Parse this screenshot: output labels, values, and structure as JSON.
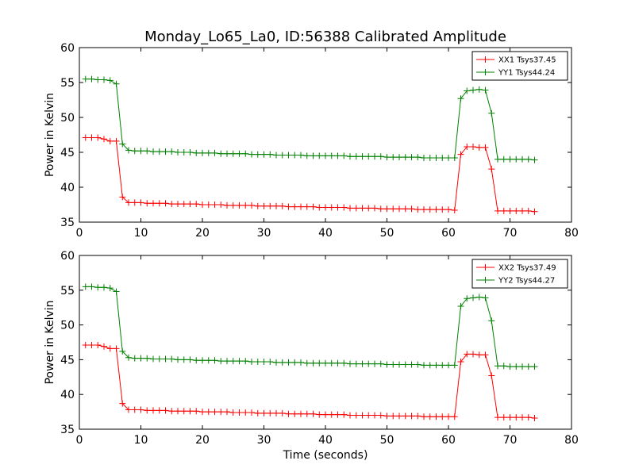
{
  "title": "Monday_Lo65_La0, ID:56388 Calibrated Amplitude",
  "colors": {
    "xx": "#ff0000",
    "yy": "#008000"
  },
  "chart_data": [
    {
      "type": "line",
      "xlabel": "",
      "ylabel": "Power in Kelvin",
      "xlim": [
        0,
        80
      ],
      "ylim": [
        35,
        60
      ],
      "xticks": [
        0,
        10,
        20,
        30,
        40,
        50,
        60,
        70,
        80
      ],
      "yticks": [
        35,
        40,
        45,
        50,
        55,
        60
      ],
      "grid": false,
      "legend": "top-right",
      "series": [
        {
          "name": "XX1 Tsys37.45",
          "color": "#ff0000",
          "x": [
            1,
            2,
            3,
            4,
            5,
            6,
            7,
            8,
            9,
            10,
            11,
            12,
            13,
            14,
            15,
            16,
            17,
            18,
            19,
            20,
            21,
            22,
            23,
            24,
            25,
            26,
            27,
            28,
            29,
            30,
            31,
            32,
            33,
            34,
            35,
            36,
            37,
            38,
            39,
            40,
            41,
            42,
            43,
            44,
            45,
            46,
            47,
            48,
            49,
            50,
            51,
            52,
            53,
            54,
            55,
            56,
            57,
            58,
            59,
            60,
            61,
            62,
            63,
            64,
            65,
            66,
            67,
            68,
            69,
            70,
            71,
            72,
            73,
            74
          ],
          "y": [
            47.1,
            47.1,
            47.1,
            46.9,
            46.6,
            46.6,
            38.6,
            37.8,
            37.8,
            37.8,
            37.7,
            37.7,
            37.7,
            37.7,
            37.6,
            37.6,
            37.6,
            37.6,
            37.6,
            37.5,
            37.5,
            37.5,
            37.5,
            37.4,
            37.4,
            37.4,
            37.4,
            37.4,
            37.3,
            37.3,
            37.3,
            37.3,
            37.3,
            37.2,
            37.2,
            37.2,
            37.2,
            37.2,
            37.1,
            37.1,
            37.1,
            37.1,
            37.1,
            37.0,
            37.0,
            37.0,
            37.0,
            37.0,
            36.9,
            36.9,
            36.9,
            36.9,
            36.9,
            36.9,
            36.8,
            36.8,
            36.8,
            36.8,
            36.8,
            36.8,
            36.7,
            44.7,
            45.8,
            45.8,
            45.7,
            45.7,
            42.6,
            36.6,
            36.6,
            36.6,
            36.6,
            36.6,
            36.6,
            36.5
          ]
        },
        {
          "name": "YY1 Tsys44.24",
          "color": "#008000",
          "x": [
            1,
            2,
            3,
            4,
            5,
            6,
            7,
            8,
            9,
            10,
            11,
            12,
            13,
            14,
            15,
            16,
            17,
            18,
            19,
            20,
            21,
            22,
            23,
            24,
            25,
            26,
            27,
            28,
            29,
            30,
            31,
            32,
            33,
            34,
            35,
            36,
            37,
            38,
            39,
            40,
            41,
            42,
            43,
            44,
            45,
            46,
            47,
            48,
            49,
            50,
            51,
            52,
            53,
            54,
            55,
            56,
            57,
            58,
            59,
            60,
            61,
            62,
            63,
            64,
            65,
            66,
            67,
            68,
            69,
            70,
            71,
            72,
            73,
            74
          ],
          "y": [
            55.5,
            55.5,
            55.4,
            55.4,
            55.3,
            54.8,
            46.2,
            45.3,
            45.2,
            45.2,
            45.2,
            45.1,
            45.1,
            45.1,
            45.1,
            45.0,
            45.0,
            45.0,
            44.9,
            44.9,
            44.9,
            44.9,
            44.8,
            44.8,
            44.8,
            44.8,
            44.8,
            44.7,
            44.7,
            44.7,
            44.7,
            44.6,
            44.6,
            44.6,
            44.6,
            44.6,
            44.5,
            44.5,
            44.5,
            44.5,
            44.5,
            44.5,
            44.5,
            44.4,
            44.4,
            44.4,
            44.4,
            44.4,
            44.4,
            44.3,
            44.3,
            44.3,
            44.3,
            44.3,
            44.3,
            44.2,
            44.2,
            44.2,
            44.2,
            44.2,
            44.2,
            52.7,
            53.8,
            53.9,
            54.0,
            53.9,
            50.6,
            44.0,
            44.0,
            44.0,
            44.0,
            44.0,
            44.0,
            43.9
          ]
        }
      ]
    },
    {
      "type": "line",
      "xlabel": "Time (seconds)",
      "ylabel": "Power in Kelvin",
      "xlim": [
        0,
        80
      ],
      "ylim": [
        35,
        60
      ],
      "xticks": [
        0,
        10,
        20,
        30,
        40,
        50,
        60,
        70,
        80
      ],
      "yticks": [
        35,
        40,
        45,
        50,
        55,
        60
      ],
      "grid": false,
      "legend": "top-right",
      "series": [
        {
          "name": "XX2 Tsys37.49",
          "color": "#ff0000",
          "x": [
            1,
            2,
            3,
            4,
            5,
            6,
            7,
            8,
            9,
            10,
            11,
            12,
            13,
            14,
            15,
            16,
            17,
            18,
            19,
            20,
            21,
            22,
            23,
            24,
            25,
            26,
            27,
            28,
            29,
            30,
            31,
            32,
            33,
            34,
            35,
            36,
            37,
            38,
            39,
            40,
            41,
            42,
            43,
            44,
            45,
            46,
            47,
            48,
            49,
            50,
            51,
            52,
            53,
            54,
            55,
            56,
            57,
            58,
            59,
            60,
            61,
            62,
            63,
            64,
            65,
            66,
            67,
            68,
            69,
            70,
            71,
            72,
            73,
            74
          ],
          "y": [
            47.1,
            47.1,
            47.1,
            46.9,
            46.6,
            46.6,
            38.7,
            37.8,
            37.8,
            37.8,
            37.7,
            37.7,
            37.7,
            37.7,
            37.6,
            37.6,
            37.6,
            37.6,
            37.6,
            37.5,
            37.5,
            37.5,
            37.5,
            37.5,
            37.4,
            37.4,
            37.4,
            37.4,
            37.3,
            37.3,
            37.3,
            37.3,
            37.3,
            37.2,
            37.2,
            37.2,
            37.2,
            37.2,
            37.1,
            37.1,
            37.1,
            37.1,
            37.1,
            37.0,
            37.0,
            37.0,
            37.0,
            37.0,
            37.0,
            36.9,
            36.9,
            36.9,
            36.9,
            36.9,
            36.9,
            36.8,
            36.8,
            36.8,
            36.8,
            36.8,
            36.8,
            44.7,
            45.8,
            45.8,
            45.7,
            45.7,
            42.7,
            36.7,
            36.7,
            36.7,
            36.7,
            36.7,
            36.7,
            36.6
          ]
        },
        {
          "name": "YY2 Tsys44.27",
          "color": "#008000",
          "x": [
            1,
            2,
            3,
            4,
            5,
            6,
            7,
            8,
            9,
            10,
            11,
            12,
            13,
            14,
            15,
            16,
            17,
            18,
            19,
            20,
            21,
            22,
            23,
            24,
            25,
            26,
            27,
            28,
            29,
            30,
            31,
            32,
            33,
            34,
            35,
            36,
            37,
            38,
            39,
            40,
            41,
            42,
            43,
            44,
            45,
            46,
            47,
            48,
            49,
            50,
            51,
            52,
            53,
            54,
            55,
            56,
            57,
            58,
            59,
            60,
            61,
            62,
            63,
            64,
            65,
            66,
            67,
            68,
            69,
            70,
            71,
            72,
            73,
            74
          ],
          "y": [
            55.5,
            55.5,
            55.4,
            55.4,
            55.3,
            54.8,
            46.2,
            45.3,
            45.2,
            45.2,
            45.2,
            45.1,
            45.1,
            45.1,
            45.1,
            45.0,
            45.0,
            45.0,
            44.9,
            44.9,
            44.9,
            44.9,
            44.8,
            44.8,
            44.8,
            44.8,
            44.8,
            44.7,
            44.7,
            44.7,
            44.7,
            44.6,
            44.6,
            44.6,
            44.6,
            44.6,
            44.5,
            44.5,
            44.5,
            44.5,
            44.5,
            44.5,
            44.5,
            44.4,
            44.4,
            44.4,
            44.4,
            44.4,
            44.4,
            44.3,
            44.3,
            44.3,
            44.3,
            44.3,
            44.3,
            44.2,
            44.2,
            44.2,
            44.2,
            44.2,
            44.2,
            52.7,
            53.8,
            53.9,
            54.0,
            53.9,
            50.6,
            44.1,
            44.1,
            44.0,
            44.0,
            44.0,
            44.0,
            44.0
          ]
        }
      ]
    }
  ]
}
